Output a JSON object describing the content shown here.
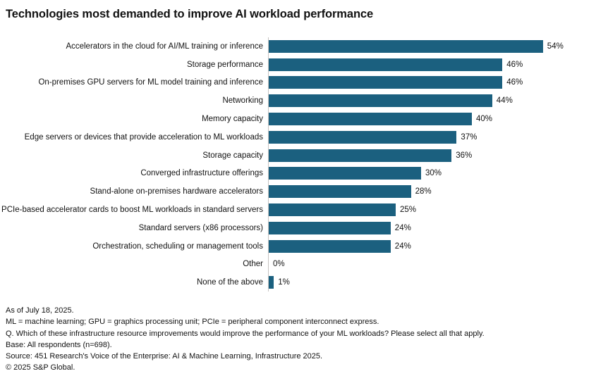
{
  "title": "Technologies most demanded to improve AI workload performance",
  "chart_data": {
    "type": "bar",
    "orientation": "horizontal",
    "title": "Technologies most demanded to improve AI workload performance",
    "xlabel": "",
    "ylabel": "",
    "xlim": [
      0,
      60
    ],
    "grid": false,
    "legend": "none",
    "bar_color": "#1b607f",
    "axis_line_color": "#c6c3c1",
    "value_suffix": "%",
    "categories": [
      "Accelerators in the cloud for AI/ML training or inference",
      "Storage performance",
      "On-premises GPU servers for ML model training and inference",
      "Networking",
      "Memory capacity",
      "Edge servers or devices that provide acceleration to ML workloads",
      "Storage capacity",
      "Converged infrastructure offerings",
      "Stand-alone on-premises hardware accelerators",
      "PCIe-based accelerator cards to boost ML workloads in standard servers",
      "Standard servers (x86 processors)",
      "Orchestration, scheduling or management tools",
      "Other",
      "None of the above"
    ],
    "values": [
      54,
      46,
      46,
      44,
      40,
      37,
      36,
      30,
      28,
      25,
      24,
      24,
      0,
      1
    ],
    "value_labels": [
      "54%",
      "46%",
      "46%",
      "44%",
      "40%",
      "37%",
      "36%",
      "30%",
      "28%",
      "25%",
      "24%",
      "24%",
      "0%",
      "1%"
    ]
  },
  "footnotes": [
    "As of July 18, 2025.",
    "ML = machine learning; GPU = graphics processing unit; PCIe = peripheral component interconnect express.",
    "Q. Which of these infrastructure resource improvements would improve the performance of your ML workloads? Please select all that apply.",
    "Base: All respondents (n=698).",
    "Source: 451 Research's Voice of the Enterprise: AI & Machine Learning, Infrastructure 2025.",
    "© 2025 S&P Global."
  ]
}
